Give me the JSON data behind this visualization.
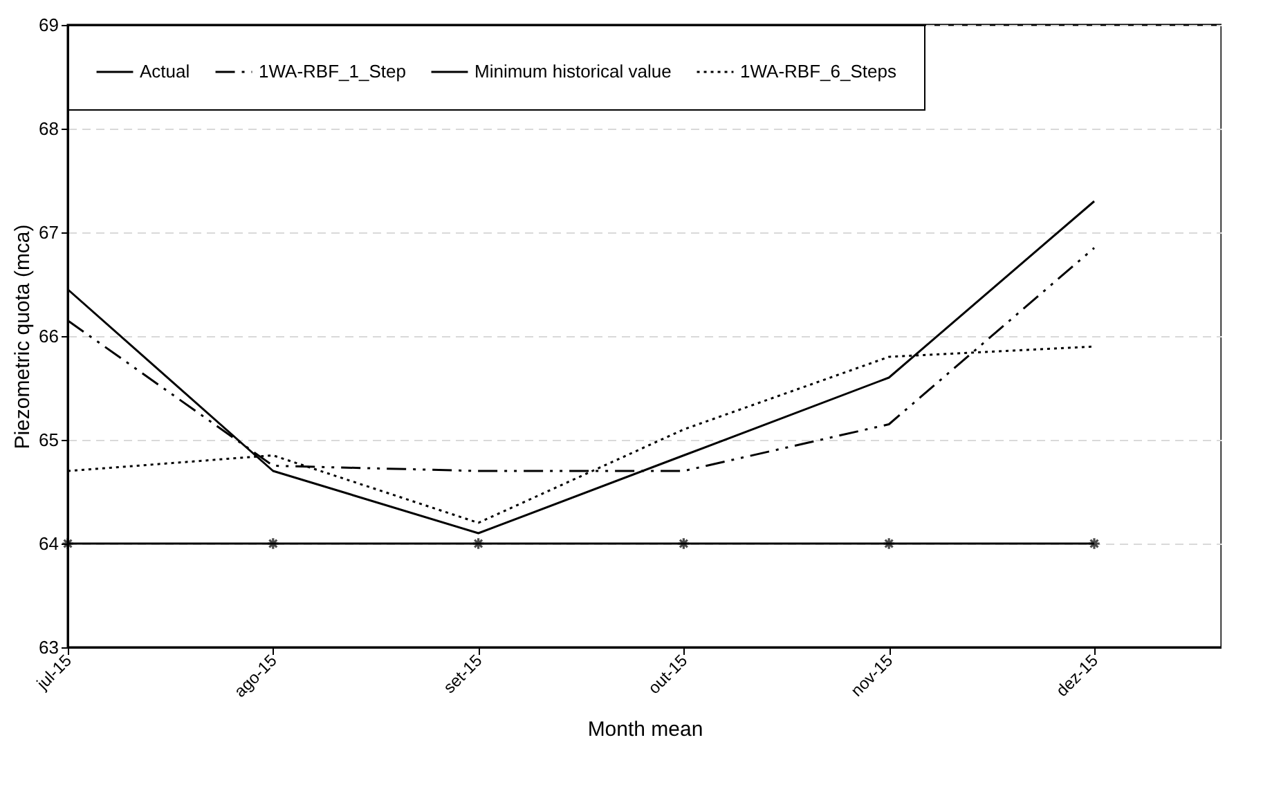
{
  "chart_data": {
    "type": "line",
    "xlabel": "Month  mean",
    "ylabel": "Piezometric  quota  (mca)",
    "categories": [
      "jul-15",
      "ago-15",
      "set-15",
      "out-15",
      "nov-15",
      "dez-15"
    ],
    "series": [
      {
        "name": "Actual",
        "color": "#000000",
        "line_style": "solid",
        "marker": "none",
        "values": [
          66.45,
          64.7,
          64.1,
          64.85,
          65.6,
          67.3
        ]
      },
      {
        "name": "1WA-RBF_1_Step",
        "color": "#000000",
        "line_style": "dashed",
        "marker": "none",
        "values": [
          66.15,
          64.75,
          64.7,
          64.7,
          65.15,
          66.85
        ]
      },
      {
        "name": "Minimum historical value",
        "color": "#000000",
        "line_style": "solid",
        "marker": "cross",
        "values": [
          64,
          64,
          64,
          64,
          64,
          64
        ]
      },
      {
        "name": "1WA-RBF_6_Steps",
        "color": "#000000",
        "line_style": "dotted",
        "marker": "none",
        "values": [
          64.7,
          64.85,
          64.2,
          65.1,
          65.8,
          65.9
        ]
      }
    ],
    "ylim": [
      63,
      69
    ],
    "yticks": [
      63,
      64,
      65,
      66,
      67,
      68,
      69
    ],
    "grid": "y",
    "legend": "top left"
  }
}
